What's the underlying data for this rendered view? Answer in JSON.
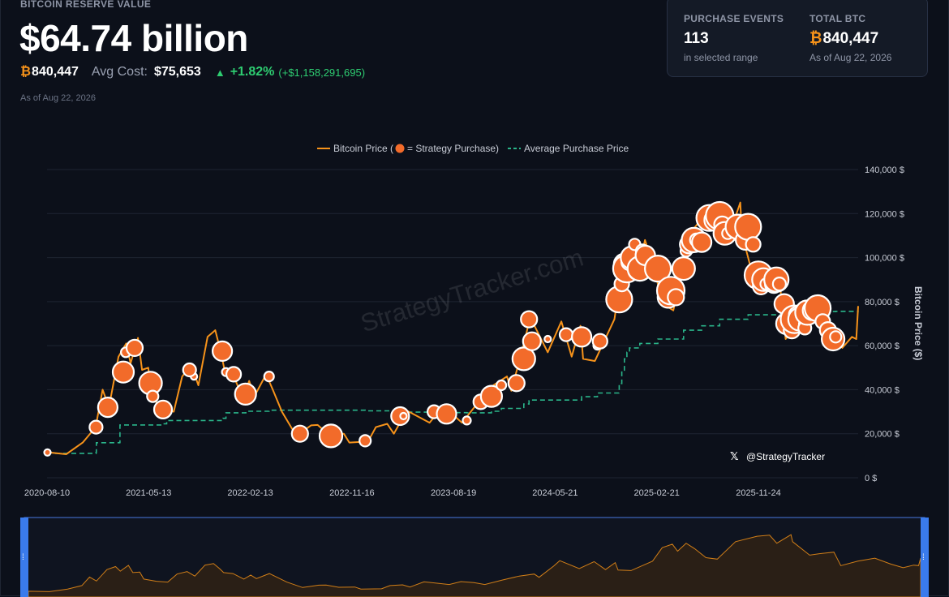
{
  "header": {
    "label": "BITCOIN RESERVE VALUE",
    "value": "$64.74 billion",
    "btc_symbol": "₿",
    "btc_amount": "840,447",
    "avg_cost_label": "Avg Cost:",
    "avg_cost_value": "$75,653",
    "change_arrow": "▲",
    "change_pct": "+1.82%",
    "change_abs": "(+$1,158,291,695)",
    "as_of": "As of Aug 22, 2026"
  },
  "card": {
    "purchase_label": "PURCHASE EVENTS",
    "purchase_value": "113",
    "purchase_sub": "in selected range",
    "total_label": "TOTAL BTC",
    "total_symbol": "₿",
    "total_value": "840,447",
    "total_sub": "As of Aug 22, 2026"
  },
  "watermark": "StrategyTracker.com",
  "handle": "@StrategyTracker",
  "colors": {
    "price": "#f7931a",
    "purchase": "#f26b2a",
    "avg": "#2ab58a",
    "background": "#0c101a",
    "navigator_border": "#4a78e0"
  },
  "chart_data": {
    "type": "line",
    "legend": [
      "Bitcoin Price (",
      "= Strategy Purchase)",
      "Average Purchase Price"
    ],
    "ylabel": "Bitcoin Price ($)",
    "ylim": [
      0,
      140000
    ],
    "y_ticks": [
      0,
      20000,
      40000,
      60000,
      80000,
      100000,
      120000,
      140000
    ],
    "y_tick_labels": [
      "0 $",
      "20,000 $",
      "40,000 $",
      "60,000 $",
      "80,000 $",
      "100,000 $",
      "120,000 $",
      "140,000 $"
    ],
    "x_range": [
      "2020-08-10",
      "2026-08-22"
    ],
    "x_ticks": [
      "2020-08-10",
      "2021-05-13",
      "2022-02-13",
      "2022-11-16",
      "2023-08-19",
      "2024-05-21",
      "2025-02-21",
      "2025-11-24"
    ],
    "series": [
      {
        "name": "Bitcoin Price",
        "points": [
          [
            "2020-08-10",
            11600
          ],
          [
            "2020-10-01",
            10700
          ],
          [
            "2020-11-15",
            16000
          ],
          [
            "2020-12-20",
            23000
          ],
          [
            "2021-01-08",
            40000
          ],
          [
            "2021-01-25",
            32000
          ],
          [
            "2021-02-20",
            55000
          ],
          [
            "2021-03-13",
            61000
          ],
          [
            "2021-03-25",
            52000
          ],
          [
            "2021-04-14",
            63500
          ],
          [
            "2021-04-25",
            49000
          ],
          [
            "2021-05-12",
            50000
          ],
          [
            "2021-05-22",
            36000
          ],
          [
            "2021-06-22",
            31500
          ],
          [
            "2021-07-20",
            30000
          ],
          [
            "2021-08-12",
            46000
          ],
          [
            "2021-09-06",
            51000
          ],
          [
            "2021-09-25",
            42000
          ],
          [
            "2021-10-20",
            64000
          ],
          [
            "2021-11-10",
            67000
          ],
          [
            "2021-11-25",
            57000
          ],
          [
            "2021-12-05",
            49000
          ],
          [
            "2021-12-28",
            47000
          ],
          [
            "2022-01-24",
            36000
          ],
          [
            "2022-02-10",
            44000
          ],
          [
            "2022-02-24",
            37000
          ],
          [
            "2022-03-28",
            47000
          ],
          [
            "2022-04-15",
            40000
          ],
          [
            "2022-05-10",
            30000
          ],
          [
            "2022-06-18",
            19000
          ],
          [
            "2022-07-28",
            23800
          ],
          [
            "2022-08-15",
            24000
          ],
          [
            "2022-09-15",
            19500
          ],
          [
            "2022-10-25",
            20000
          ],
          [
            "2022-11-09",
            16000
          ],
          [
            "2022-12-30",
            16500
          ],
          [
            "2023-01-20",
            23000
          ],
          [
            "2023-02-20",
            24500
          ],
          [
            "2023-03-10",
            20000
          ],
          [
            "2023-04-14",
            30500
          ],
          [
            "2023-06-15",
            25000
          ],
          [
            "2023-07-14",
            31000
          ],
          [
            "2023-08-15",
            29000
          ],
          [
            "2023-09-11",
            25000
          ],
          [
            "2023-10-24",
            34000
          ],
          [
            "2023-12-05",
            42000
          ],
          [
            "2024-01-11",
            46000
          ],
          [
            "2024-01-23",
            39500
          ],
          [
            "2024-02-28",
            62000
          ],
          [
            "2024-03-14",
            73000
          ],
          [
            "2024-05-01",
            57000
          ],
          [
            "2024-06-07",
            71000
          ],
          [
            "2024-07-05",
            55000
          ],
          [
            "2024-07-29",
            69000
          ],
          [
            "2024-08-05",
            54000
          ],
          [
            "2024-09-06",
            53000
          ],
          [
            "2024-10-29",
            72000
          ],
          [
            "2024-11-22",
            99000
          ],
          [
            "2024-12-17",
            106000
          ],
          [
            "2024-12-30",
            92000
          ],
          [
            "2025-01-20",
            108000
          ],
          [
            "2025-02-10",
            97000
          ],
          [
            "2025-03-10",
            79000
          ],
          [
            "2025-04-07",
            76000
          ],
          [
            "2025-05-22",
            111000
          ],
          [
            "2025-07-14",
            122000
          ],
          [
            "2025-08-14",
            124000
          ],
          [
            "2025-09-01",
            108000
          ],
          [
            "2025-10-06",
            125000
          ],
          [
            "2025-10-10",
            111000
          ],
          [
            "2025-11-21",
            84000
          ],
          [
            "2025-12-15",
            87000
          ],
          [
            "2026-01-20",
            90000
          ],
          [
            "2026-02-06",
            63000
          ],
          [
            "2026-03-20",
            72000
          ],
          [
            "2026-05-01",
            78000
          ],
          [
            "2026-06-10",
            66000
          ],
          [
            "2026-07-10",
            59000
          ],
          [
            "2026-08-05",
            64000
          ],
          [
            "2026-08-17",
            63000
          ],
          [
            "2026-08-22",
            78000
          ]
        ]
      },
      {
        "name": "Strategy Purchase",
        "points": [
          [
            "2020-08-11",
            11500
          ],
          [
            "2020-12-21",
            23000
          ],
          [
            "2021-01-22",
            32000
          ],
          [
            "2021-02-24",
            49000
          ],
          [
            "2021-03-01",
            49000
          ],
          [
            "2021-03-05",
            48000
          ],
          [
            "2021-03-12",
            57000
          ],
          [
            "2021-04-05",
            59000
          ],
          [
            "2021-05-18",
            43000
          ],
          [
            "2021-05-24",
            37000
          ],
          [
            "2021-06-21",
            31000
          ],
          [
            "2021-09-13",
            46000
          ],
          [
            "2021-09-01",
            49000
          ],
          [
            "2021-11-29",
            57500
          ],
          [
            "2021-12-09",
            48000
          ],
          [
            "2021-12-30",
            47000
          ],
          [
            "2022-01-31",
            38000
          ],
          [
            "2022-04-05",
            46000
          ],
          [
            "2022-06-28",
            20000
          ],
          [
            "2022-09-20",
            19000
          ],
          [
            "2022-12-22",
            16800
          ],
          [
            "2023-03-27",
            28000
          ],
          [
            "2023-04-05",
            28000
          ],
          [
            "2023-06-27",
            30000
          ],
          [
            "2023-07-31",
            29000
          ],
          [
            "2023-09-24",
            26000
          ],
          [
            "2023-11-01",
            34500
          ],
          [
            "2023-11-30",
            37000
          ],
          [
            "2023-12-27",
            42000
          ],
          [
            "2024-02-06",
            43000
          ],
          [
            "2024-02-26",
            54000
          ],
          [
            "2024-03-11",
            72000
          ],
          [
            "2024-03-19",
            62000
          ],
          [
            "2024-05-01",
            63000
          ],
          [
            "2024-06-20",
            65000
          ],
          [
            "2024-08-01",
            64000
          ],
          [
            "2024-09-13",
            60000
          ],
          [
            "2024-09-20",
            62000
          ],
          [
            "2024-11-11",
            81000
          ],
          [
            "2024-11-18",
            88000
          ],
          [
            "2024-11-25",
            97000
          ],
          [
            "2024-12-02",
            95000
          ],
          [
            "2024-12-09",
            98000
          ],
          [
            "2024-12-16",
            100000
          ],
          [
            "2024-12-23",
            106000
          ],
          [
            "2024-12-30",
            94000
          ],
          [
            "2025-01-06",
            95000
          ],
          [
            "2025-01-13",
            103000
          ],
          [
            "2025-01-21",
            101000
          ],
          [
            "2025-02-24",
            95000
          ],
          [
            "2025-03-17",
            83000
          ],
          [
            "2025-03-24",
            82000
          ],
          [
            "2025-03-31",
            85000
          ],
          [
            "2025-04-14",
            82000
          ],
          [
            "2025-05-05",
            95000
          ],
          [
            "2025-05-12",
            103000
          ],
          [
            "2025-05-19",
            106000
          ],
          [
            "2025-06-02",
            108000
          ],
          [
            "2025-06-09",
            108000
          ],
          [
            "2025-06-23",
            107000
          ],
          [
            "2025-07-14",
            118000
          ],
          [
            "2025-07-21",
            117000
          ],
          [
            "2025-07-29",
            117000
          ],
          [
            "2025-08-11",
            119000
          ],
          [
            "2025-08-18",
            115000
          ],
          [
            "2025-08-25",
            111000
          ],
          [
            "2025-09-02",
            111000
          ],
          [
            "2025-09-22",
            113000
          ],
          [
            "2025-09-29",
            114000
          ],
          [
            "2025-10-14",
            113000
          ],
          [
            "2025-10-20",
            108000
          ],
          [
            "2025-10-27",
            114000
          ],
          [
            "2025-11-10",
            106000
          ],
          [
            "2025-11-17",
            92000
          ],
          [
            "2025-11-24",
            92000
          ],
          [
            "2025-12-01",
            87000
          ],
          [
            "2025-12-08",
            90000
          ],
          [
            "2025-12-15",
            88000
          ],
          [
            "2026-01-05",
            88000
          ],
          [
            "2026-01-12",
            90000
          ],
          [
            "2026-01-20",
            88000
          ],
          [
            "2026-02-02",
            79000
          ],
          [
            "2026-02-09",
            70000
          ],
          [
            "2026-02-17",
            68000
          ],
          [
            "2026-02-23",
            67000
          ],
          [
            "2026-03-02",
            72000
          ],
          [
            "2026-03-09",
            74000
          ],
          [
            "2026-03-16",
            72000
          ],
          [
            "2026-03-23",
            70000
          ],
          [
            "2026-03-30",
            68000
          ],
          [
            "2026-04-06",
            75000
          ],
          [
            "2026-04-13",
            76000
          ],
          [
            "2026-04-20",
            76000
          ],
          [
            "2026-05-04",
            77000
          ],
          [
            "2026-05-18",
            71000
          ],
          [
            "2026-06-01",
            67000
          ],
          [
            "2026-06-15",
            63000
          ],
          [
            "2026-06-22",
            64000
          ]
        ]
      },
      {
        "name": "Average Purchase Price",
        "points": [
          [
            "2020-09-01",
            11100
          ],
          [
            "2020-12-21",
            11500
          ],
          [
            "2020-12-22",
            15900
          ],
          [
            "2021-02-23",
            16000
          ],
          [
            "2021-02-24",
            24000
          ],
          [
            "2021-06-21",
            24500
          ],
          [
            "2021-07-01",
            26000
          ],
          [
            "2021-12-01",
            27000
          ],
          [
            "2021-12-09",
            29500
          ],
          [
            "2022-02-01",
            30200
          ],
          [
            "2022-04-05",
            30700
          ],
          [
            "2022-12-22",
            30400
          ],
          [
            "2023-03-27",
            29800
          ],
          [
            "2023-06-27",
            29600
          ],
          [
            "2023-09-24",
            29500
          ],
          [
            "2023-11-30",
            30200
          ],
          [
            "2023-12-27",
            31500
          ],
          [
            "2024-02-26",
            33500
          ],
          [
            "2024-03-11",
            35000
          ],
          [
            "2024-03-19",
            35300
          ],
          [
            "2024-08-01",
            36800
          ],
          [
            "2024-09-13",
            38500
          ],
          [
            "2024-11-10",
            39200
          ],
          [
            "2024-11-11",
            42800
          ],
          [
            "2024-11-18",
            48000
          ],
          [
            "2024-11-25",
            54000
          ],
          [
            "2024-12-02",
            57000
          ],
          [
            "2024-12-09",
            59000
          ],
          [
            "2025-01-06",
            61000
          ],
          [
            "2025-02-24",
            63000
          ],
          [
            "2025-05-05",
            67000
          ],
          [
            "2025-06-23",
            69000
          ],
          [
            "2025-08-11",
            72000
          ],
          [
            "2025-10-27",
            74000
          ],
          [
            "2025-12-15",
            74000
          ],
          [
            "2026-02-09",
            75000
          ],
          [
            "2026-03-30",
            75300
          ],
          [
            "2026-04-20",
            75500
          ],
          [
            "2026-06-22",
            75600
          ],
          [
            "2026-08-22",
            75653
          ]
        ]
      }
    ]
  }
}
